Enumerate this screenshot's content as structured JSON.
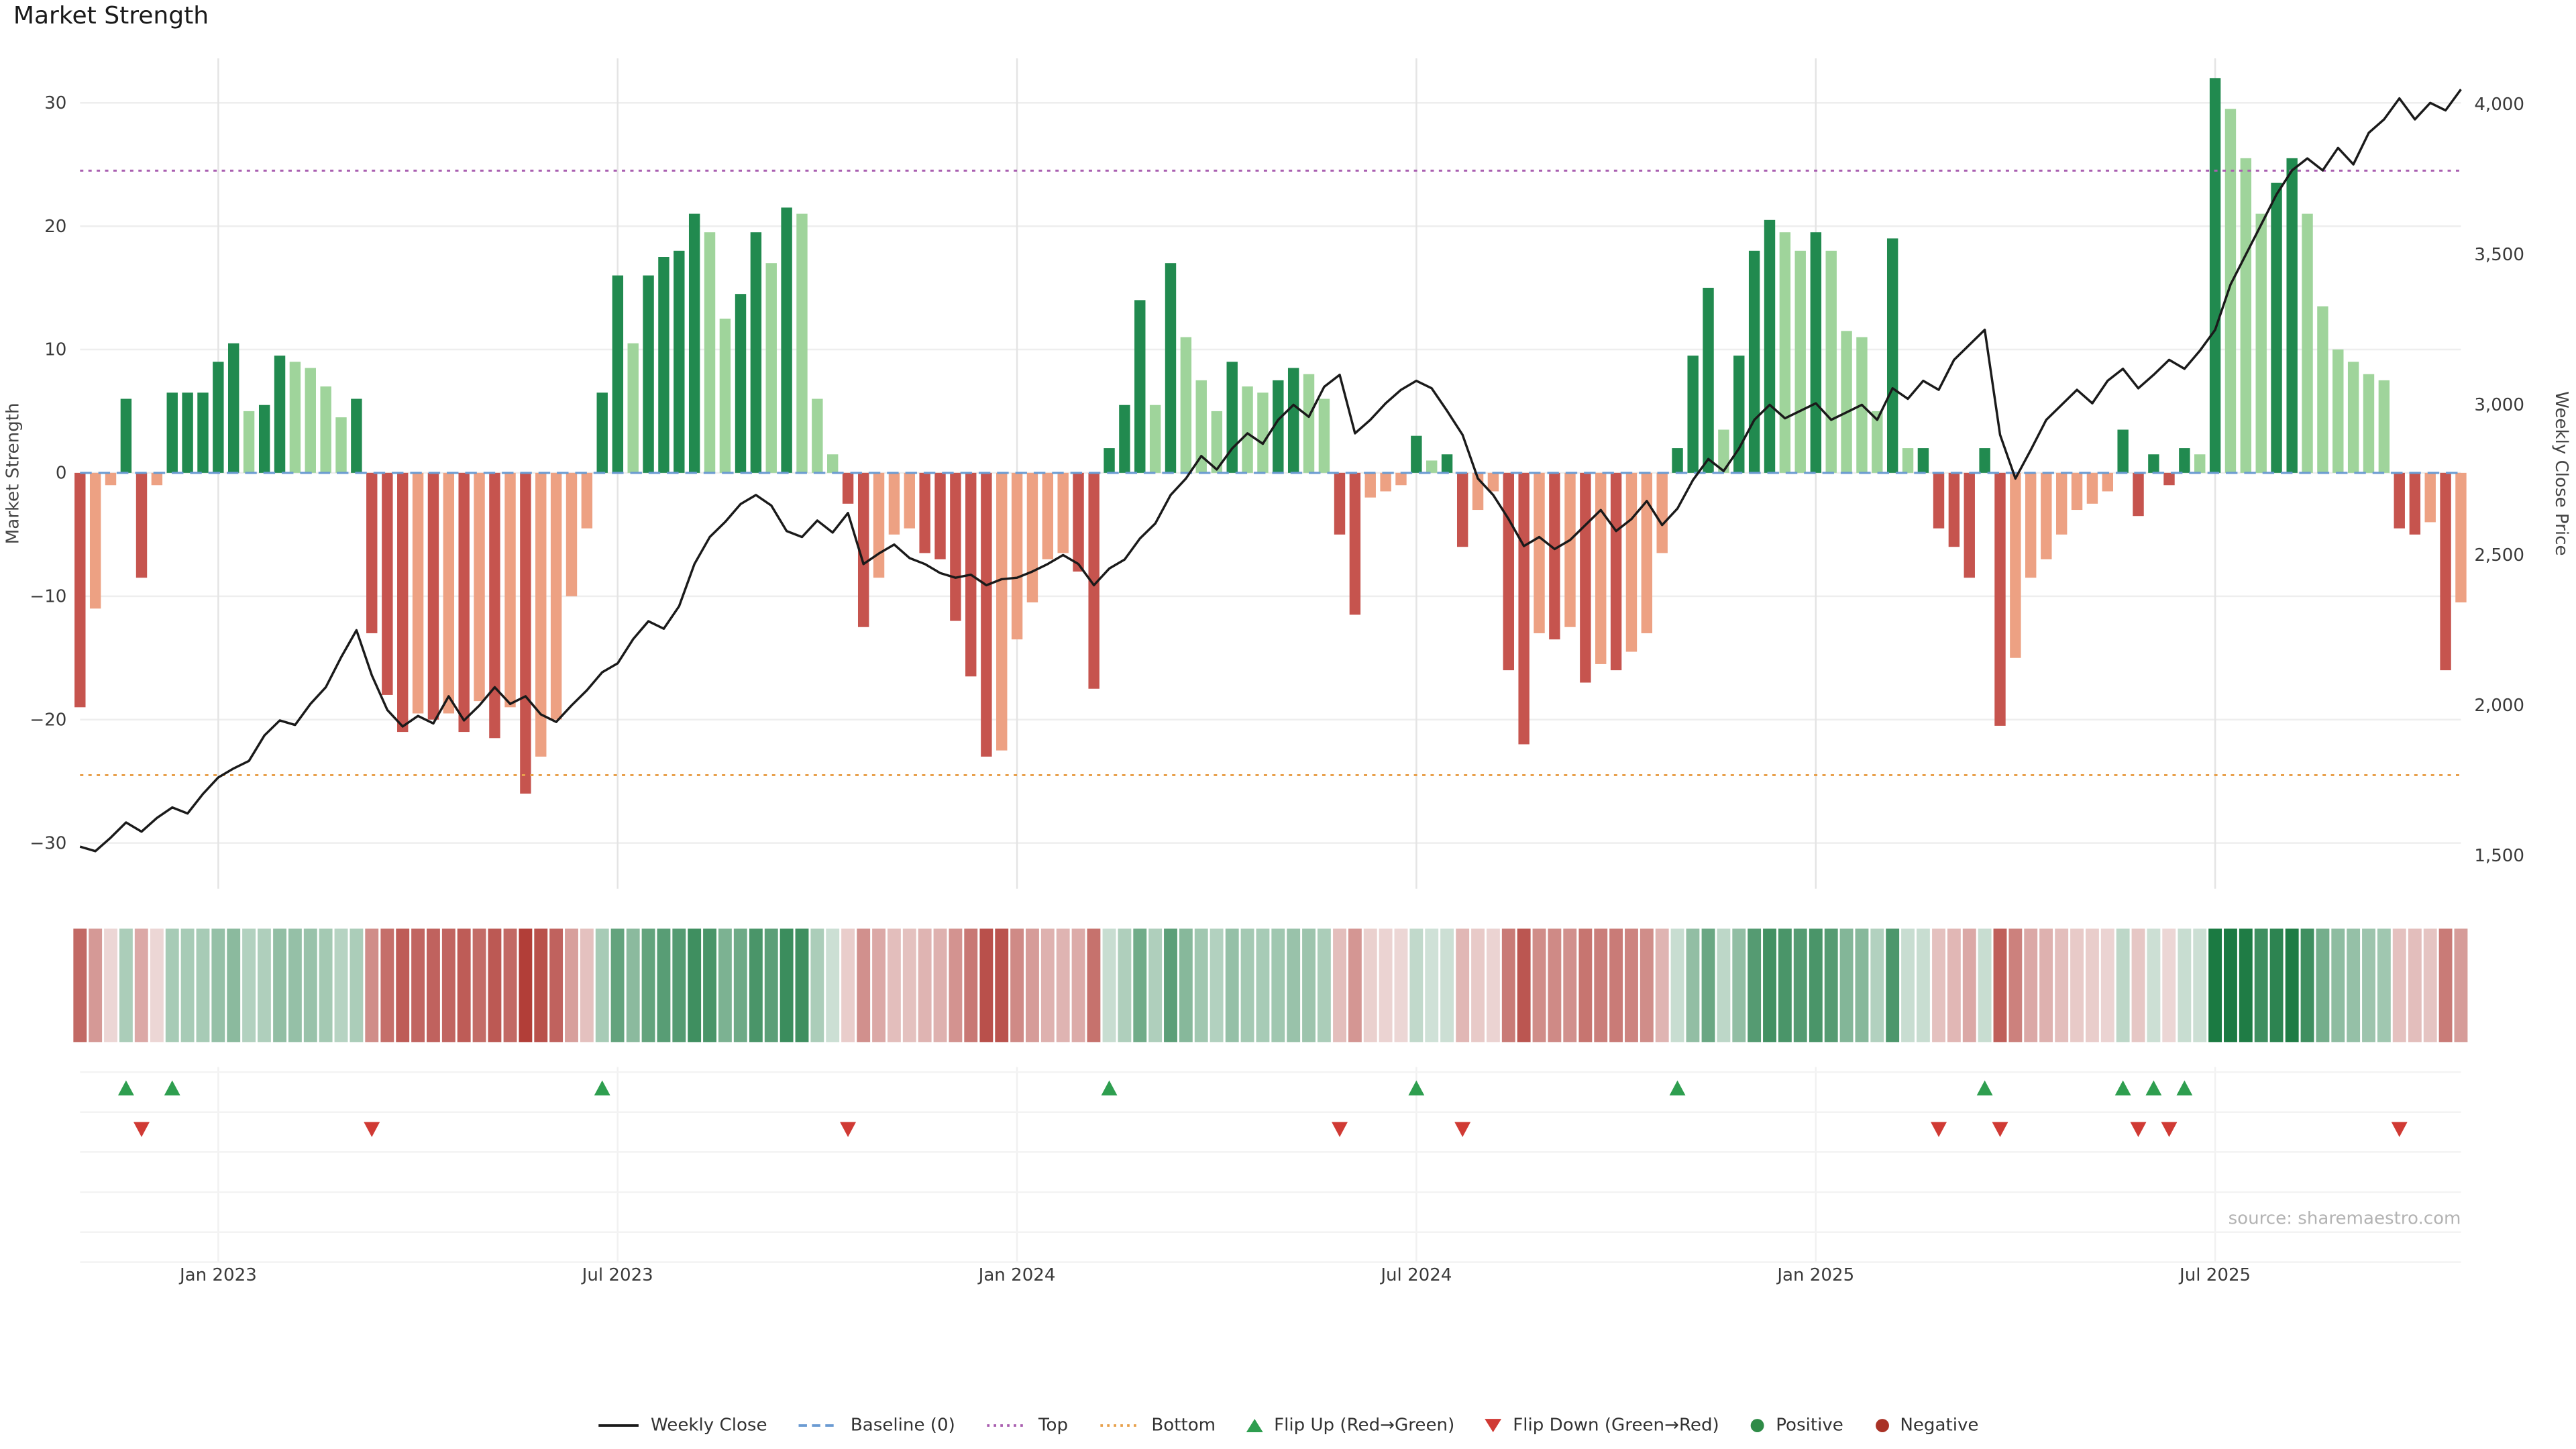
{
  "source": "source: sharemaestro.com",
  "colors": {
    "positive_strong": "#218a4f",
    "positive_weak": "#9fd49b",
    "negative_strong": "#c6544e",
    "negative_weak": "#eda183",
    "line": "#1a1a1a",
    "baseline": "#6b9bd2",
    "top": "#a95fb0",
    "bottom": "#e8a04c",
    "flip_up": "#2e9e4f",
    "flip_down": "#d03a34",
    "positive_dot": "#2e8b47",
    "negative_dot": "#a93226",
    "grid": "#e4e4e4"
  },
  "legend": {
    "items": [
      {
        "label": "Weekly Close",
        "icon": "solid-line"
      },
      {
        "label": "Baseline (0)",
        "icon": "dashed-line"
      },
      {
        "label": "Top",
        "icon": "dotted-line-purple"
      },
      {
        "label": "Bottom",
        "icon": "dotted-line-orange"
      },
      {
        "label": "Flip Up (Red→Green)",
        "icon": "triangle-up"
      },
      {
        "label": "Flip Down (Green→Red)",
        "icon": "triangle-down"
      },
      {
        "label": "Positive",
        "icon": "dot-green"
      },
      {
        "label": "Negative",
        "icon": "dot-red"
      }
    ]
  },
  "chart_data": {
    "type": "bar",
    "title": "Market Strength",
    "ylabel_left": "Market Strength",
    "ylabel_right": "Weekly Close Price",
    "x_ticks": [
      {
        "week": 9,
        "label": "Jan 2023"
      },
      {
        "week": 35,
        "label": "Jul 2023"
      },
      {
        "week": 61,
        "label": "Jan 2024"
      },
      {
        "week": 87,
        "label": "Jul 2024"
      },
      {
        "week": 113,
        "label": "Jan 2025"
      },
      {
        "week": 139,
        "label": "Jul 2025"
      }
    ],
    "left_ticks": [
      -30,
      -20,
      -10,
      0,
      10,
      20,
      30
    ],
    "right_ticks": [
      1500,
      2000,
      2500,
      3000,
      3500,
      4000
    ],
    "left_range": [
      -33.7,
      33.6
    ],
    "right_range": [
      1390,
      4153
    ],
    "levels": {
      "baseline": 0,
      "top": 24.5,
      "bottom": -24.5
    },
    "series": [
      {
        "name": "Market Strength",
        "kind": "bar",
        "values": [
          -19,
          -11,
          -1,
          6,
          -8.5,
          -1,
          6.5,
          6.5,
          6.5,
          9,
          10.5,
          5,
          5.5,
          9.5,
          9,
          8.5,
          7,
          4.5,
          6,
          -13,
          -18,
          -21,
          -19.5,
          -20,
          -19.5,
          -21,
          -18.5,
          -21.5,
          -19,
          -26,
          -23,
          -20,
          -10,
          -4.5,
          6.5,
          16,
          10.5,
          16,
          17.5,
          18,
          21,
          19.5,
          12.5,
          14.5,
          19.5,
          17,
          21.5,
          21,
          6,
          1.5,
          -2.5,
          -12.5,
          -8.5,
          -5,
          -4.5,
          -6.5,
          -7,
          -12,
          -16.5,
          -23,
          -22.5,
          -13.5,
          -10.5,
          -7,
          -6.5,
          -8,
          -17.5,
          2,
          5.5,
          14,
          5.5,
          17,
          11,
          7.5,
          5,
          9,
          7,
          6.5,
          7.5,
          8.5,
          8,
          6,
          -5,
          -11.5,
          -2,
          -1.5,
          -1,
          3,
          1,
          1.5,
          -6,
          -3,
          -1.5,
          -16,
          -22,
          -13,
          -13.5,
          -12.5,
          -17,
          -15.5,
          -16,
          -14.5,
          -13,
          -6.5,
          2,
          9.5,
          15,
          3.5,
          9.5,
          18,
          20.5,
          19.5,
          18,
          19.5,
          18,
          11.5,
          11,
          5,
          19,
          2,
          2,
          -4.5,
          -6,
          -8.5,
          2,
          -20.5,
          -15,
          -8.5,
          -7,
          -5,
          -3,
          -2.5,
          -1.5,
          3.5,
          -3.5,
          1.5,
          -1,
          2,
          1.5,
          32,
          29.5,
          25.5,
          21,
          23.5,
          25.5,
          21,
          13.5,
          10,
          9,
          8,
          7.5,
          -4.5,
          -5,
          -4,
          -16,
          -10.5
        ]
      },
      {
        "name": "Weekly Close",
        "kind": "line",
        "values": [
          1530,
          1515,
          1560,
          1610,
          1580,
          1625,
          1660,
          1640,
          1705,
          1760,
          1790,
          1815,
          1900,
          1950,
          1935,
          2005,
          2060,
          2160,
          2250,
          2100,
          1985,
          1930,
          1965,
          1940,
          2030,
          1950,
          2000,
          2060,
          2005,
          2030,
          1970,
          1945,
          2000,
          2050,
          2110,
          2140,
          2220,
          2280,
          2255,
          2330,
          2470,
          2560,
          2610,
          2670,
          2700,
          2665,
          2580,
          2560,
          2615,
          2575,
          2640,
          2470,
          2505,
          2535,
          2490,
          2470,
          2440,
          2425,
          2435,
          2400,
          2420,
          2425,
          2445,
          2470,
          2500,
          2470,
          2400,
          2455,
          2485,
          2555,
          2605,
          2700,
          2755,
          2830,
          2785,
          2855,
          2905,
          2870,
          2950,
          3000,
          2960,
          3060,
          3100,
          2905,
          2950,
          3005,
          3050,
          3080,
          3055,
          2980,
          2900,
          2755,
          2700,
          2620,
          2530,
          2560,
          2520,
          2550,
          2600,
          2650,
          2580,
          2620,
          2680,
          2600,
          2655,
          2750,
          2820,
          2780,
          2855,
          2950,
          3000,
          2955,
          2980,
          3005,
          2950,
          2975,
          3000,
          2950,
          3055,
          3020,
          3080,
          3050,
          3150,
          3200,
          3250,
          2900,
          2755,
          2850,
          2950,
          3000,
          3050,
          3005,
          3080,
          3120,
          3055,
          3100,
          3150,
          3120,
          3180,
          3250,
          3400,
          3500,
          3600,
          3700,
          3780,
          3820,
          3780,
          3855,
          3800,
          3905,
          3950,
          4020,
          3950,
          4005,
          3980,
          4050
        ]
      }
    ]
  }
}
